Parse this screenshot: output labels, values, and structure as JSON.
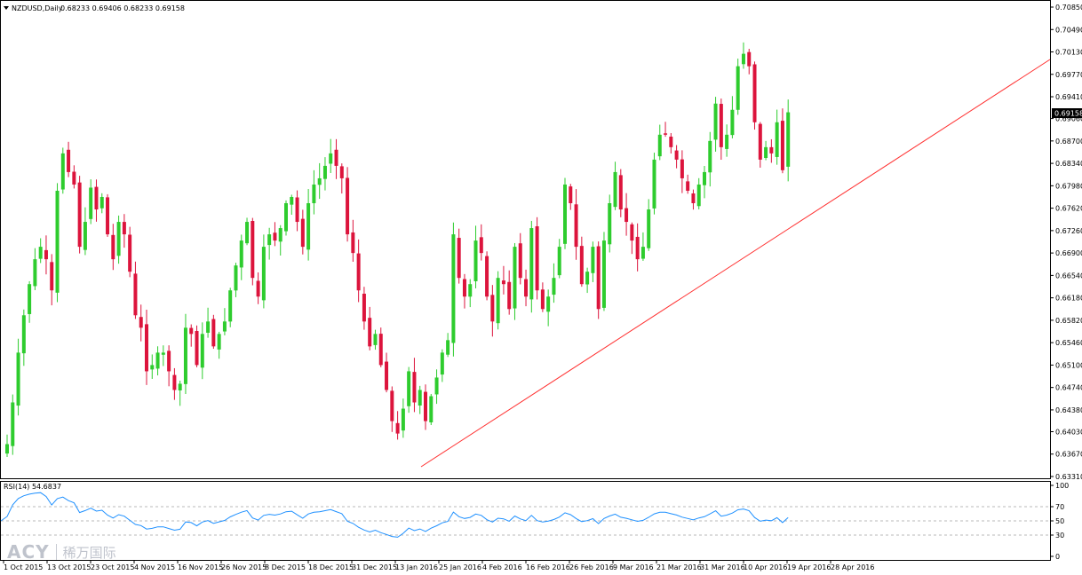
{
  "header": {
    "symbol": "NZDUSD,Daily",
    "ohlc": "0.68233 0.69406 0.68233 0.69158"
  },
  "indicator": {
    "label": "RSI(14) 54.6837"
  },
  "logo": {
    "brand": "ACY",
    "sub": "稀万国际"
  },
  "colors": {
    "bull": "#2ecc2e",
    "bear": "#dc143c",
    "trend": "#ff3030",
    "rsi": "#1e90ff",
    "price_tag_bg": "#000000"
  },
  "chart_data": {
    "type": "candlestick",
    "price_axis": {
      "ticks": [
        "0.70850",
        "0.70490",
        "0.70130",
        "0.69770",
        "0.69410",
        "0.69060",
        "0.68700",
        "0.68340",
        "0.67980",
        "0.67620",
        "0.67260",
        "0.66900",
        "0.66540",
        "0.66180",
        "0.65820",
        "0.65460",
        "0.65100",
        "0.64740",
        "0.64380",
        "0.64030",
        "0.63670",
        "0.63310"
      ],
      "current_price": "0.69158",
      "ylim": [
        0.6331,
        0.7085
      ]
    },
    "rsi_axis": {
      "ticks": [
        "100",
        "70",
        "50",
        "30",
        "0"
      ],
      "levels": [
        70,
        50,
        30
      ],
      "ylim": [
        0,
        100
      ]
    },
    "x_labels": [
      "1 Oct 2015",
      "13 Oct 2015",
      "23 Oct 2015",
      "4 Nov 2015",
      "16 Nov 2015",
      "26 Nov 2015",
      "8 Dec 2015",
      "18 Dec 2015",
      "31 Dec 2015",
      "13 Jan 2016",
      "25 Jan 2016",
      "4 Feb 2016",
      "16 Feb 2016",
      "26 Feb 2016",
      "9 Mar 2016",
      "21 Mar 2016",
      "31 Mar 2016",
      "10 Apr 2016",
      "19 Apr 2016",
      "28 Apr 2016"
    ],
    "closes": [
      0.6383,
      0.645,
      0.653,
      0.659,
      0.664,
      0.668,
      0.67,
      0.668,
      0.663,
      0.679,
      0.685,
      0.682,
      0.68,
      0.67,
      0.674,
      0.6795,
      0.676,
      0.678,
      0.672,
      0.668,
      0.674,
      0.672,
      0.666,
      0.659,
      0.657,
      0.65,
      0.651,
      0.653,
      0.653,
      0.65,
      0.647,
      0.648,
      0.657,
      0.656,
      0.651,
      0.656,
      0.658,
      0.654,
      0.656,
      0.658,
      0.663,
      0.667,
      0.671,
      0.674,
      0.665,
      0.662,
      0.67,
      0.672,
      0.671,
      0.673,
      0.677,
      0.678,
      0.674,
      0.67,
      0.677,
      0.68,
      0.681,
      0.683,
      0.685,
      0.683,
      0.681,
      0.672,
      0.669,
      0.663,
      0.658,
      0.654,
      0.656,
      0.651,
      0.647,
      0.642,
      0.64,
      0.644,
      0.65,
      0.645,
      0.647,
      0.642,
      0.646,
      0.649,
      0.653,
      0.655,
      0.672,
      0.665,
      0.662,
      0.664,
      0.671,
      0.669,
      0.662,
      0.658,
      0.665,
      0.664,
      0.66,
      0.67,
      0.665,
      0.662,
      0.673,
      0.663,
      0.66,
      0.662,
      0.665,
      0.67,
      0.68,
      0.677,
      0.67,
      0.664,
      0.666,
      0.67,
      0.66,
      0.671,
      0.677,
      0.682,
      0.676,
      0.674,
      0.671,
      0.668,
      0.67,
      0.676,
      0.684,
      0.688,
      0.688,
      0.686,
      0.684,
      0.681,
      0.679,
      0.677,
      0.68,
      0.682,
      0.687,
      0.693,
      0.686,
      0.688,
      0.692,
      0.699,
      0.701,
      0.699,
      0.69,
      0.684,
      0.686,
      0.685,
      0.69,
      0.6823,
      0.6916
    ],
    "series": [
      {
        "name": "RSI(14)",
        "last": "54.6837"
      }
    ]
  }
}
